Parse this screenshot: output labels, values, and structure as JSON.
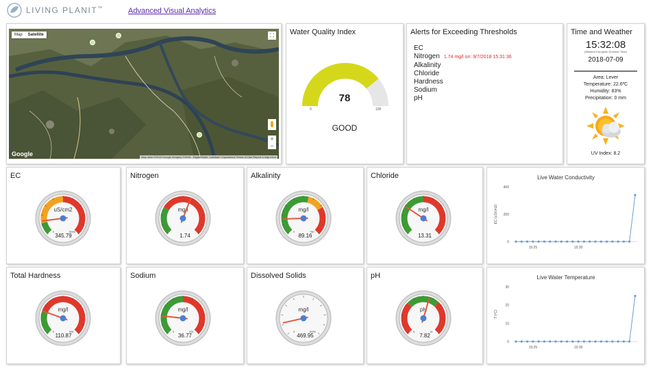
{
  "header": {
    "brand": "LIVING PLANIT",
    "brand_mark": "™",
    "nav_link": "Advanced Visual Analytics"
  },
  "map": {
    "tab_map": "Map",
    "tab_satellite": "Satellite",
    "google_label": "Google",
    "credits": "Map data ©2018 Google Imagery ©2018 , DigitalGlobe, Landsat / Copernicus  Terms of Use  Report a map error",
    "zoom_in": "+",
    "zoom_out": "−",
    "fullscreen": "⛶"
  },
  "wqi": {
    "title": "Water Quality Index",
    "value": "78",
    "status": "GOOD",
    "min": "0",
    "max": "100",
    "fraction": 0.78,
    "fill_color": "#d5d81a",
    "track_color": "#e6e6e6"
  },
  "alerts": {
    "title": "Alerts for Exceeding Thresholds",
    "items": [
      {
        "name": "EC",
        "msg": ""
      },
      {
        "name": "Nitrogen",
        "msg": "1.74 mg/l on: 9/7/2018 15:31:36"
      },
      {
        "name": "Alkalinity",
        "msg": ""
      },
      {
        "name": "Chloride",
        "msg": ""
      },
      {
        "name": "Hardness",
        "msg": ""
      },
      {
        "name": "Sodium",
        "msg": ""
      },
      {
        "name": "pH",
        "msg": ""
      }
    ],
    "alert_color": "#e0262b"
  },
  "time": {
    "title": "Time and Weather",
    "clock": "15:32:08",
    "timezone": "(Western European Summer Time)",
    "date": "2018-07-09",
    "area": "Area: Lever",
    "temperature": "Temperature: 22.6ºC",
    "humidity": "Humidity: 83%",
    "precipitation": "Precipitation: 0 mm",
    "uv": "UV Index: 8.2",
    "weather_icon": "partly-cloudy-icon"
  },
  "gauges": [
    {
      "title": "EC",
      "unit": "uS/cm2",
      "value": "345.79",
      "min": "0",
      "max": "5000",
      "needle": 0.14,
      "bands": [
        [
          "#3c9b35",
          0,
          0.12
        ],
        [
          "#f3a21e",
          0.12,
          0.5
        ],
        [
          "#e0382b",
          0.5,
          1
        ]
      ]
    },
    {
      "title": "Nitrogen",
      "unit": "mg/l",
      "value": "1.74",
      "min": "",
      "max": "",
      "needle": 0.58,
      "bands": [
        [
          "#3c9b35",
          0,
          0.28
        ],
        [
          "#e0382b",
          0.28,
          1
        ]
      ]
    },
    {
      "title": "Alkalinity",
      "unit": "mg/l",
      "value": "89.16",
      "min": "0",
      "max": "750",
      "needle": 0.16,
      "bands": [
        [
          "#3c9b35",
          0,
          0.55
        ],
        [
          "#f3a21e",
          0.55,
          0.72
        ],
        [
          "#e0382b",
          0.72,
          1
        ]
      ]
    },
    {
      "title": "Chloride",
      "unit": "mg/l",
      "value": "13.31",
      "min": "",
      "max": "",
      "needle": 0.29,
      "bands": [
        [
          "#3c9b35",
          0,
          0.5
        ],
        [
          "#e0382b",
          0.5,
          1
        ]
      ]
    },
    {
      "title": "Total Hardness",
      "unit": "mg/l",
      "value": "110.87",
      "min": "0",
      "max": "500",
      "needle": 0.24,
      "bands": [
        [
          "#3c9b35",
          0,
          0.24
        ],
        [
          "#e0382b",
          0.24,
          1
        ]
      ]
    },
    {
      "title": "Sodium",
      "unit": "mg/l",
      "value": "36.77",
      "min": "0",
      "max": "200",
      "needle": 0.19,
      "bands": [
        [
          "#3c9b35",
          0,
          0.5
        ],
        [
          "#e0382b",
          0.5,
          1
        ]
      ]
    },
    {
      "title": "Dissolved Solids",
      "unit": "mg/l",
      "value": "469.95",
      "min": "0",
      "max": "5000",
      "needle": 0.12,
      "bands": []
    },
    {
      "title": "pH",
      "unit": "pH",
      "value": "7.82",
      "min": "0",
      "max": "14",
      "needle": 0.56,
      "bands": [
        [
          "#e0382b",
          0,
          0.33
        ],
        [
          "#3c9b35",
          0.33,
          0.66
        ],
        [
          "#e0382b",
          0.66,
          1
        ]
      ]
    }
  ],
  "chart_data": [
    {
      "type": "line",
      "title": "Live Water Conductivity",
      "xlabel": "",
      "ylabel": "EC (uS/cm2)",
      "ylim": [
        0,
        400
      ],
      "yticks": [
        0,
        200,
        400
      ],
      "xtick_labels": [
        "15:25",
        "15:30"
      ],
      "xtick_indices": [
        3,
        11
      ],
      "values": [
        0,
        0,
        0,
        0,
        0,
        0,
        0,
        0,
        0,
        0,
        0,
        0,
        0,
        0,
        0,
        0,
        0,
        0,
        0,
        0,
        0,
        340
      ],
      "color": "#6b9bd2"
    },
    {
      "type": "line",
      "title": "Live Water Temperature",
      "xlabel": "",
      "ylabel": "T (ºC)",
      "ylim": [
        0,
        30
      ],
      "yticks": [
        0,
        10,
        20,
        30
      ],
      "xtick_labels": [
        "15:25",
        "15:30"
      ],
      "xtick_indices": [
        3,
        11
      ],
      "values": [
        0,
        0,
        0,
        0,
        0,
        0,
        0,
        0,
        0,
        0,
        0,
        0,
        0,
        0,
        0,
        0,
        0,
        0,
        0,
        0,
        0,
        25
      ],
      "color": "#6b9bd2"
    }
  ]
}
